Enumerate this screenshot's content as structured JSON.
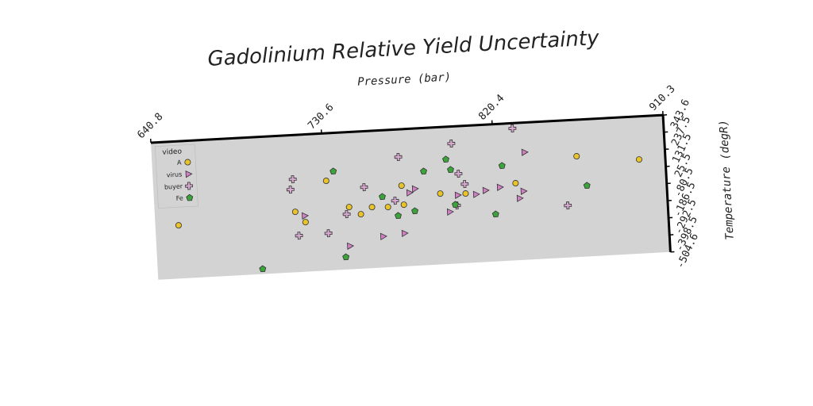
{
  "chart_data": {
    "type": "scatter",
    "title": "Gadolinium Relative Yield Uncertainty",
    "x_label": "Pressure (bar)",
    "y_label": "Temperature (degR)",
    "xlim": [
      640.8,
      910.3
    ],
    "xticks": [
      640.8,
      730.6,
      820.4,
      910.3
    ],
    "ylim": [
      -504.6,
      343.6
    ],
    "yticks": [
      343.6,
      237.5,
      131.5,
      25.5,
      -80.5,
      -186.5,
      -292.5,
      -398.5,
      -504.6
    ],
    "legend_title": "video",
    "legend_position": "upper left",
    "series": [
      {
        "name": "A",
        "color": "#e8c32a",
        "marker": "circle",
        "x": [
          653.0,
          714.6,
          719.7,
          731.7,
          743.0,
          749.0,
          755.0,
          763.4,
          771.1,
          771.8,
          791.2,
          804.5,
          831.0,
          863.8,
          896.5
        ],
        "values": [
          -175.6,
          -131.0,
          -198.2,
          49.9,
          -119.7,
          -167.8,
          -127.6,
          -132.5,
          -5.0,
          -123.2,
          -66.8,
          -75.1,
          -28.0,
          118.1,
          77.4
        ]
      },
      {
        "name": "virus",
        "color": "#d17fc4",
        "marker": "triangle-right",
        "x": [
          719.4,
          742.3,
          760.0,
          771.3,
          775.0,
          778.0,
          795.7,
          800.3,
          809.9,
          815.0,
          822.6,
          832.7,
          834.9,
          836.5
        ],
        "values": [
          -158.9,
          -360.5,
          -312.4,
          -300.2,
          -51.6,
          -29.0,
          -183.0,
          -82.5,
          -83.5,
          -62.4,
          -47.7,
          -122.7,
          -80.0,
          160.2
        ]
      },
      {
        "name": "buyer",
        "color": "#d8a8d0",
        "marker": "plus",
        "x": [
          714.2,
          712.7,
          715.9,
          731.4,
          741.5,
          751.4,
          767.3,
          770.2,
          798.4,
          801.3,
          804.3,
          799.6,
          830.9,
          857.8
        ],
        "values": [
          70.5,
          7.7,
          -279.6,
          -274.7,
          -162.9,
          -2.1,
          -95.7,
          173.0,
          238.2,
          49.4,
          -16.3,
          -145.7,
          311.2,
          -183.0
        ]
      },
      {
        "name": "Fe",
        "color": "#3aa33a",
        "marker": "pentagon",
        "x": [
          695.9,
          735.7,
          739.9,
          760.7,
          768.5,
          777.4,
          783.1,
          795.1,
          797.3,
          798.8,
          819.7,
          824.4,
          868.4
        ],
        "values": [
          -473.2,
          106.3,
          -427.7,
          -67.3,
          -189.8,
          -166.3,
          75.9,
          142.1,
          76.9,
          -140.3,
          -212.9,
          84.2,
          -66.8
        ]
      }
    ]
  }
}
